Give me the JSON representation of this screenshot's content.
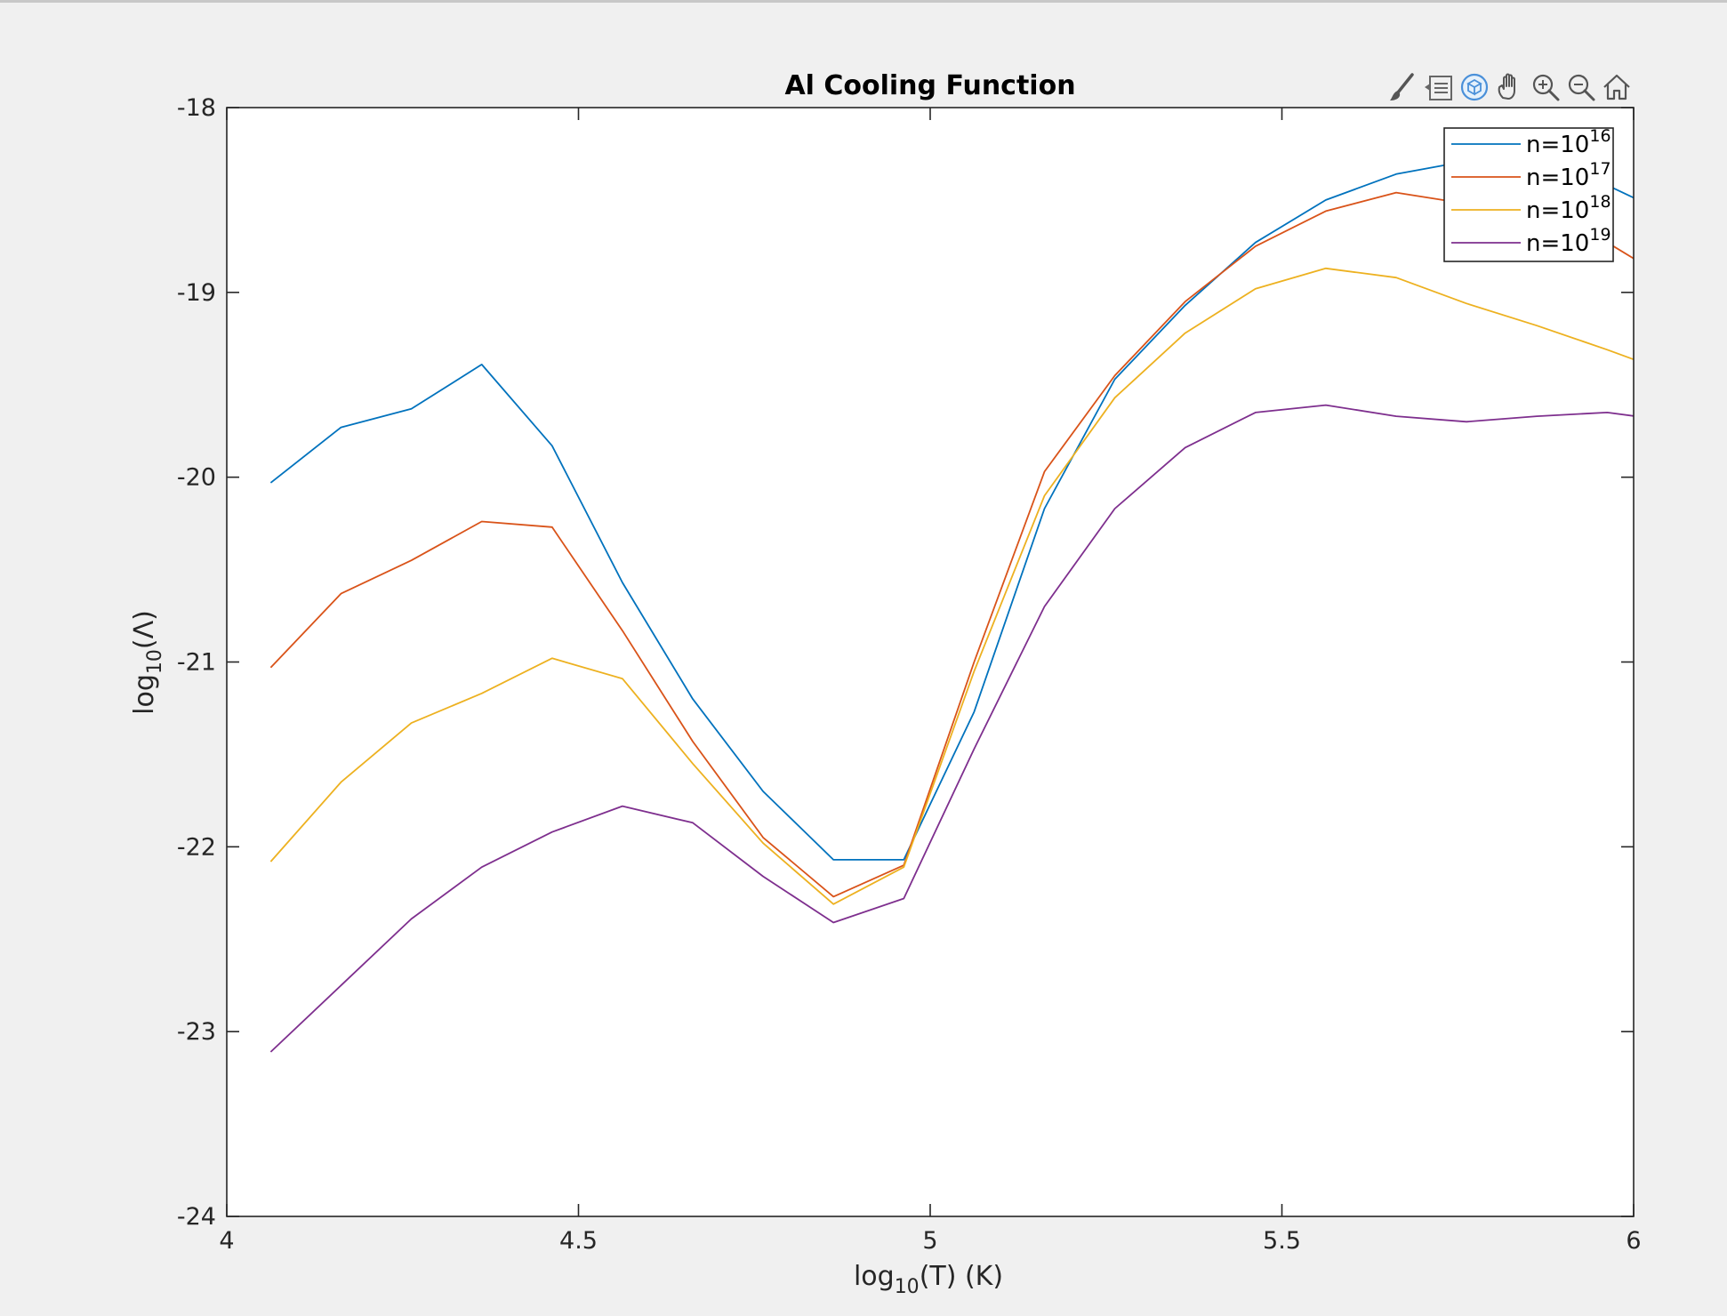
{
  "chart_data": {
    "type": "line",
    "title": "Al Cooling Function",
    "xlabel": "log10(T) (K)",
    "xlabel_parts": {
      "base": "log",
      "sub": "10",
      "rest": "(T) (K)"
    },
    "ylabel": "log10(Λ)",
    "ylabel_parts": {
      "base": "log",
      "sub": "10",
      "rest": "(Λ)"
    },
    "xlim": [
      4,
      6
    ],
    "ylim": [
      -24,
      -18
    ],
    "xticks": [
      4,
      4.5,
      5,
      5.5,
      6
    ],
    "xtick_labels": [
      "4",
      "4.5",
      "5",
      "5.5",
      "6"
    ],
    "yticks": [
      -24,
      -23,
      -22,
      -21,
      -20,
      -19,
      -18
    ],
    "ytick_labels": [
      "-24",
      "-23",
      "-22",
      "-21",
      "-20",
      "-19",
      "-18"
    ],
    "grid": false,
    "legend_position": "top-right",
    "x": [
      4.0625,
      4.1625,
      4.2625,
      4.3625,
      4.4625,
      4.5625,
      4.6625,
      4.7625,
      4.8625,
      4.9625,
      5.0625,
      5.1625,
      5.2625,
      5.3625,
      5.4625,
      5.5625,
      5.6625,
      5.7625,
      5.8625,
      5.9625,
      6.0625
    ],
    "series": [
      {
        "name": "n=10^16",
        "label_base": "n=10",
        "label_exp": "16",
        "color": "#0072bd",
        "values": [
          -20.03,
          -19.73,
          -19.63,
          -19.39,
          -19.83,
          -20.57,
          -21.2,
          -21.7,
          -22.07,
          -22.07,
          -21.27,
          -20.17,
          -19.47,
          -19.07,
          -18.73,
          -18.5,
          -18.36,
          -18.29,
          -18.26,
          -18.42,
          -18.6
        ]
      },
      {
        "name": "n=10^17",
        "label_base": "n=10",
        "label_exp": "17",
        "color": "#d95319",
        "values": [
          -21.03,
          -20.63,
          -20.45,
          -20.24,
          -20.27,
          -20.83,
          -21.43,
          -21.95,
          -22.27,
          -22.1,
          -21.0,
          -19.97,
          -19.45,
          -19.05,
          -18.75,
          -18.56,
          -18.46,
          -18.52,
          -18.58,
          -18.73,
          -18.96
        ]
      },
      {
        "name": "n=10^18",
        "label_base": "n=10",
        "label_exp": "18",
        "color": "#edb120",
        "values": [
          -22.08,
          -21.65,
          -21.33,
          -21.17,
          -20.98,
          -21.09,
          -21.55,
          -21.98,
          -22.31,
          -22.11,
          -21.05,
          -20.1,
          -19.57,
          -19.22,
          -18.98,
          -18.87,
          -18.92,
          -19.06,
          -19.18,
          -19.31,
          -19.45
        ]
      },
      {
        "name": "n=10^19",
        "label_base": "n=10",
        "label_exp": "19",
        "color": "#7e2f8e",
        "values": [
          -23.11,
          -22.75,
          -22.39,
          -22.11,
          -21.92,
          -21.78,
          -21.87,
          -22.16,
          -22.41,
          -22.28,
          -21.47,
          -20.7,
          -20.17,
          -19.84,
          -19.65,
          -19.61,
          -19.67,
          -19.7,
          -19.67,
          -19.65,
          -19.7
        ]
      }
    ]
  },
  "toolbar": {
    "items": [
      {
        "icon": "brush-icon"
      },
      {
        "icon": "legend-toggle-icon"
      },
      {
        "icon": "rotate-3d-icon"
      },
      {
        "icon": "pan-hand-icon"
      },
      {
        "icon": "zoom-in-icon"
      },
      {
        "icon": "zoom-out-icon"
      },
      {
        "icon": "home-icon"
      }
    ]
  }
}
